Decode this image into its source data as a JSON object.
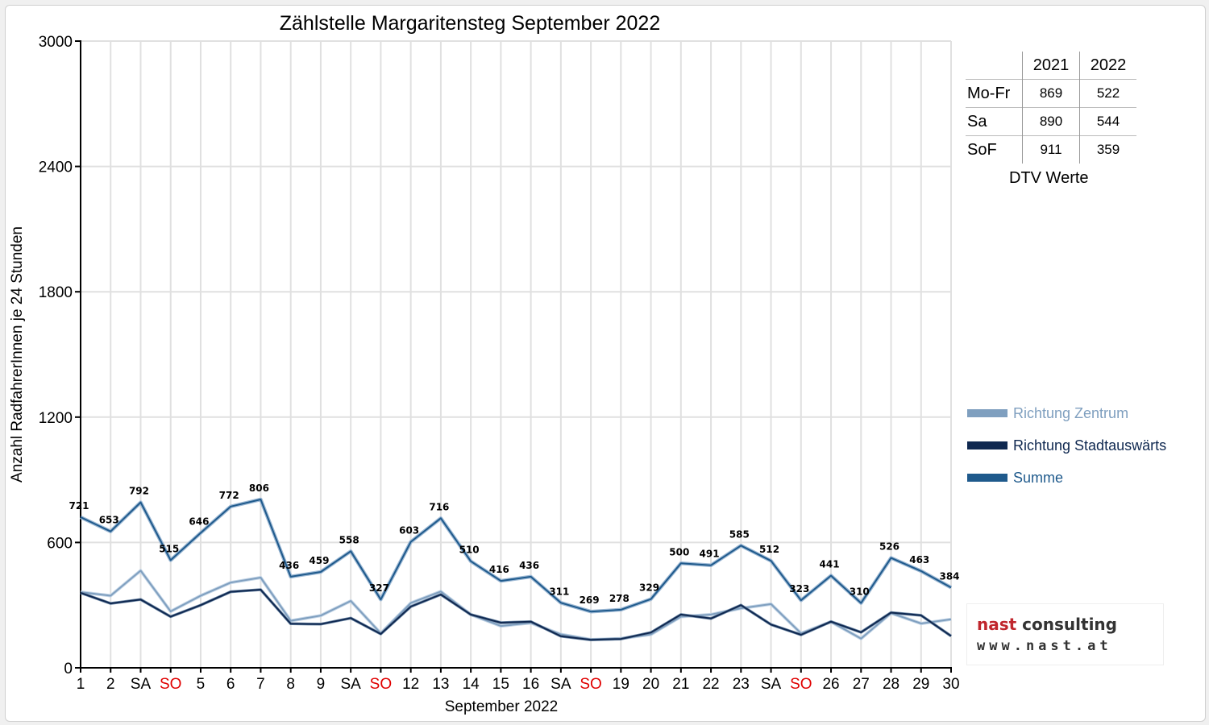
{
  "chart_data": {
    "type": "line",
    "title": "Zählstelle Margaritensteg September 2022",
    "xlabel": "September 2022",
    "ylabel": "Anzahl RadfahrerInnen je 24 Stunden",
    "ylim": [
      0,
      3000
    ],
    "yticks": [
      0,
      600,
      1200,
      1800,
      2400,
      3000
    ],
    "grid": true,
    "legend_position": "right",
    "categories": [
      "1",
      "2",
      "SA",
      "SO",
      "5",
      "6",
      "7",
      "8",
      "9",
      "SA",
      "SO",
      "12",
      "13",
      "14",
      "15",
      "16",
      "SA",
      "SO",
      "19",
      "20",
      "21",
      "22",
      "23",
      "SA",
      "SO",
      "26",
      "27",
      "28",
      "29",
      "30"
    ],
    "sunday_indices": [
      3,
      10,
      17,
      24
    ],
    "series": [
      {
        "name": "Richtung Zentrum",
        "color": "#7f9fbf",
        "values": [
          362,
          345,
          465,
          270,
          345,
          408,
          432,
          225,
          250,
          320,
          165,
          310,
          365,
          255,
          200,
          215,
          160,
          135,
          140,
          160,
          245,
          255,
          285,
          305,
          165,
          220,
          140,
          262,
          212,
          232
        ]
      },
      {
        "name": "Richtung Stadtauswärts",
        "color": "#0f2850",
        "values": [
          359,
          308,
          327,
          245,
          300,
          364,
          374,
          211,
          209,
          238,
          162,
          293,
          351,
          255,
          216,
          221,
          151,
          134,
          138,
          169,
          255,
          236,
          300,
          207,
          158,
          221,
          170,
          264,
          251,
          152
        ]
      },
      {
        "name": "Summe",
        "color": "#1f5a8c",
        "values": [
          721,
          653,
          792,
          515,
          646,
          772,
          806,
          436,
          459,
          558,
          327,
          603,
          716,
          510,
          416,
          436,
          311,
          269,
          278,
          329,
          500,
          491,
          585,
          512,
          323,
          441,
          310,
          526,
          463,
          384
        ]
      }
    ],
    "data_labels": [
      "721",
      "653",
      "792",
      "515",
      "646",
      "772",
      "806",
      "436",
      "459",
      "558",
      "327",
      "603",
      "716",
      "510",
      "416",
      "436",
      "311",
      "269",
      "278",
      "329",
      "500",
      "491",
      "585",
      "512",
      "323",
      "441",
      "310",
      "526",
      "463",
      "384"
    ]
  },
  "dtv_table": {
    "header": [
      "",
      "2021",
      "2022"
    ],
    "rows": [
      {
        "label": "Mo-Fr",
        "v2021": "869",
        "v2022": "522"
      },
      {
        "label": "Sa",
        "v2021": "890",
        "v2022": "544"
      },
      {
        "label": "SoF",
        "v2021": "911",
        "v2022": "359"
      }
    ],
    "caption": "DTV Werte"
  },
  "legend": [
    {
      "label": "Richtung Zentrum",
      "color": "#7f9fbf"
    },
    {
      "label": "Richtung Stadtauswärts",
      "color": "#0f2850"
    },
    {
      "label": "Summe",
      "color": "#1f5a8c"
    }
  ],
  "logo": {
    "name_part1": "nast",
    "name_part2": "consulting",
    "url": "www.nast.at"
  },
  "colors": {
    "sunday": "#e00000",
    "grid": "#e0e0e0",
    "axis": "#000000"
  }
}
